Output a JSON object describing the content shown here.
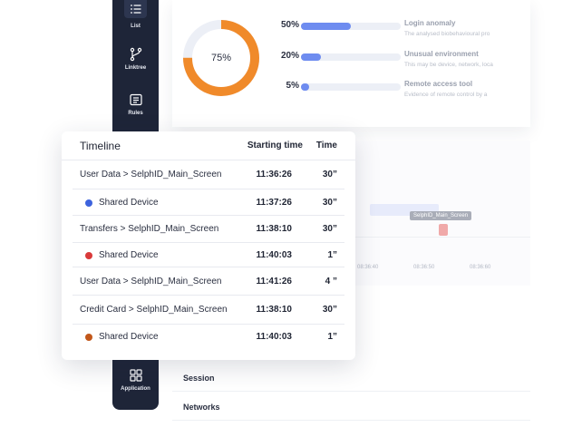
{
  "sidebar": {
    "items": [
      {
        "label": "List",
        "icon": "list-icon"
      },
      {
        "label": "Linktree",
        "icon": "branch-icon"
      },
      {
        "label": "Rules",
        "icon": "rules-icon"
      },
      {
        "label": "Application",
        "icon": "grid-icon"
      }
    ]
  },
  "overview": {
    "donut_value": "75%",
    "donut_fraction": 0.75,
    "metrics": [
      {
        "pct": "50%",
        "fraction": 0.5,
        "title": "Login anomaly",
        "desc": "The analysed biobehavioural pro"
      },
      {
        "pct": "20%",
        "fraction": 0.2,
        "title": "Unusual environment",
        "desc": "This may be device, network, loca"
      },
      {
        "pct": "5%",
        "fraction": 0.05,
        "title": "Remote access tool",
        "desc": "Evidence of remote control by a"
      }
    ]
  },
  "gantt": {
    "tag": "SelphID_Main_Screen",
    "ticks": [
      "08:36:40",
      "08:36:50",
      "08:36:60"
    ]
  },
  "sections": [
    "Session",
    "Networks"
  ],
  "timeline": {
    "headers": {
      "timeline": "Timeline",
      "start": "Starting time",
      "time": "Time"
    },
    "rows": [
      {
        "name": "User Data > SelphID_Main_Screen",
        "start": "11:36:26",
        "time": "30”",
        "dot": null
      },
      {
        "name": "Shared Device",
        "start": "11:37:26",
        "time": "30”",
        "dot": "#3d63dd"
      },
      {
        "name": "Transfers > SelphID_Main_Screen",
        "start": "11:38:10",
        "time": "30”",
        "dot": null
      },
      {
        "name": "Shared Device",
        "start": "11:40:03",
        "time": "1”",
        "dot": "#d93a3a"
      },
      {
        "name": "User Data > SelphID_Main_Screen",
        "start": "11:41:26",
        "time": "4 ”",
        "dot": null
      },
      {
        "name": "Credit Card > SelphID_Main_Screen",
        "start": "11:38:10",
        "time": "30”",
        "dot": null
      },
      {
        "name": "Shared Device",
        "start": "11:40:03",
        "time": "1”",
        "dot": "#c2571a"
      }
    ]
  },
  "colors": {
    "donut": "#f08a2a",
    "donut_track": "#eceff6",
    "bar_fill": "#6e8cf0"
  }
}
